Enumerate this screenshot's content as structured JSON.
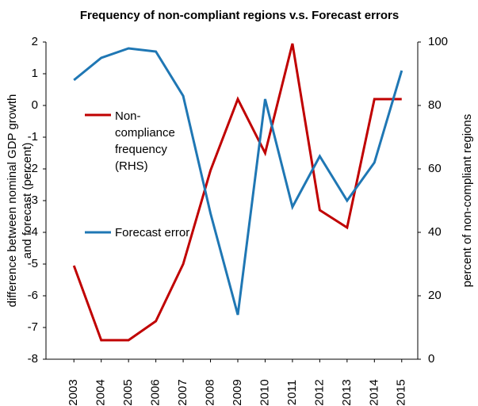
{
  "chart_data": {
    "type": "line",
    "title": "Frequency of non-compliant  regions v.s. Forecast errors",
    "y_label": [
      "difference between nominal GDP growth",
      "and forecast (percent)"
    ],
    "y2_label": "percent of non-compliant  regions",
    "categories": [
      "2003",
      "2004",
      "2005",
      "2006",
      "2007",
      "2008",
      "2009",
      "2010",
      "2011",
      "2012",
      "2013",
      "2014",
      "2015"
    ],
    "series": [
      {
        "name": "Non-compliance frequency (RHS)",
        "color": "#c00000",
        "axis": "y2",
        "values": [
          29.5,
          6,
          6,
          12,
          30,
          59.5,
          82,
          65,
          99.5,
          47,
          41.5,
          82,
          82
        ]
      },
      {
        "name": "Forecast error",
        "color": "#1f77b4",
        "values": [
          0.8,
          1.5,
          1.8,
          1.7,
          0.3,
          -3.4,
          -6.6,
          0.2,
          -3.2,
          -1.6,
          -3.0,
          -1.8,
          1.1
        ]
      }
    ],
    "ylim": [
      -8,
      2
    ],
    "yticks": [
      -8,
      -7,
      -6,
      -5,
      -4,
      -3,
      -2,
      -1,
      0,
      1,
      2
    ],
    "y2lim": [
      0,
      100
    ],
    "y2ticks": [
      0,
      20,
      40,
      60,
      80,
      100
    ]
  }
}
